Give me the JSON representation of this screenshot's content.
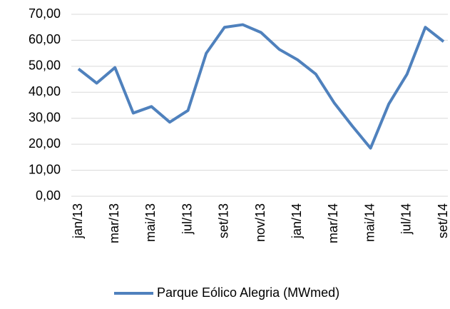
{
  "chart_data": {
    "type": "line",
    "categories": [
      "jan/13",
      null,
      "mar/13",
      null,
      "mai/13",
      null,
      "jul/13",
      null,
      "set/13",
      null,
      "nov/13",
      null,
      "jan/14",
      null,
      "mar/14",
      null,
      "mai/14",
      null,
      "jul/14",
      null,
      "set/14"
    ],
    "series": [
      {
        "name": "Parque Eólico Alegria (MWmed)",
        "color": "#4f81bd",
        "values": [
          49,
          43.5,
          49.5,
          32,
          34.5,
          28.5,
          33,
          55,
          65,
          66,
          63,
          56.5,
          52.5,
          47,
          36,
          27,
          18.5,
          35.5,
          47,
          65,
          59.5
        ]
      }
    ],
    "ylim": [
      0,
      70
    ],
    "yticks": [
      {
        "value": 0,
        "label": "0,00"
      },
      {
        "value": 10,
        "label": "10,00"
      },
      {
        "value": 20,
        "label": "20,00"
      },
      {
        "value": 30,
        "label": "30,00"
      },
      {
        "value": 40,
        "label": "40,00"
      },
      {
        "value": 50,
        "label": "50,00"
      },
      {
        "value": 60,
        "label": "60,00"
      },
      {
        "value": 70,
        "label": "70,00"
      }
    ],
    "grid": true,
    "legend": "bottom"
  }
}
